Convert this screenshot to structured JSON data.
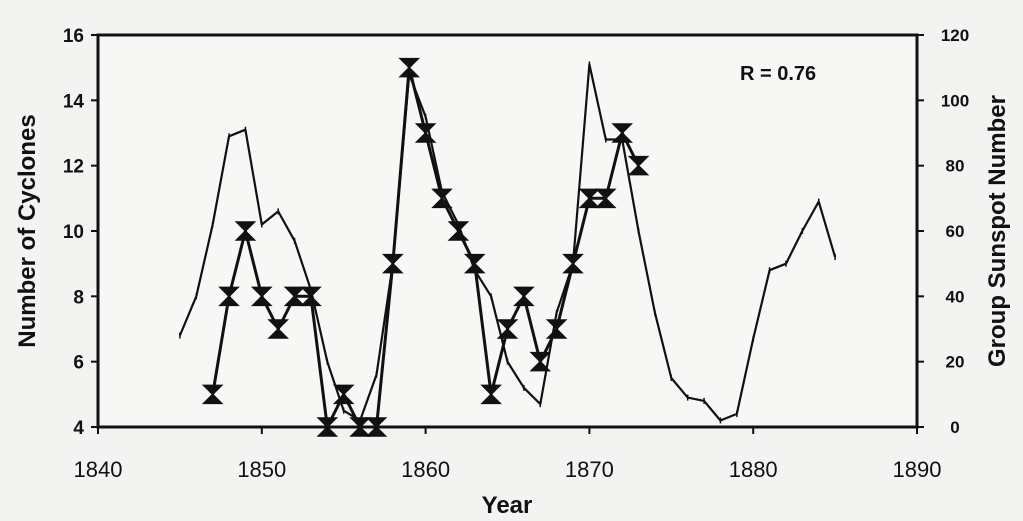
{
  "chart_data": {
    "type": "line",
    "title": "",
    "xlabel": "Year",
    "ylabel": "Number of Cyclones",
    "y2label": "Group Sunspot Number",
    "annotation": "R = 0.76",
    "xlim": [
      1840,
      1890
    ],
    "ylim": [
      4,
      16
    ],
    "y2lim": [
      0,
      120
    ],
    "xticks": [
      "1840",
      "1850",
      "1860",
      "1870",
      "1880",
      "1890"
    ],
    "yticks": [
      "4",
      "6",
      "8",
      "10",
      "12",
      "14",
      "16"
    ],
    "y2ticks": [
      "0",
      "20",
      "40",
      "60",
      "80",
      "100",
      "120"
    ],
    "grid": false,
    "series": [
      {
        "axis": "left",
        "marker": "hourglass",
        "x": [
          1847,
          1848,
          1849,
          1850,
          1851,
          1852,
          1853,
          1854,
          1855,
          1856,
          1857,
          1858,
          1859,
          1860,
          1861,
          1862,
          1863,
          1864,
          1865,
          1866,
          1867,
          1868,
          1869,
          1870,
          1871,
          1872,
          1873
        ],
        "y": [
          5,
          8,
          10,
          8,
          7,
          8,
          8,
          4,
          5,
          4,
          4,
          9,
          15,
          13,
          11,
          10,
          9,
          5,
          7,
          8,
          6,
          7,
          9,
          11,
          11,
          13,
          12
        ]
      },
      {
        "axis": "right",
        "marker": "tick",
        "x": [
          1845,
          1846,
          1847,
          1848,
          1849,
          1850,
          1851,
          1852,
          1853,
          1854,
          1855,
          1856,
          1857,
          1858,
          1859,
          1860,
          1861,
          1862,
          1863,
          1864,
          1865,
          1866,
          1867,
          1868,
          1869,
          1870,
          1871,
          1872,
          1873,
          1874,
          1875,
          1876,
          1877,
          1878,
          1879,
          1880,
          1881,
          1882,
          1883,
          1884,
          1885
        ],
        "y": [
          28,
          40,
          62,
          89,
          91,
          62,
          66,
          57,
          42,
          20,
          5,
          2,
          16,
          50,
          108,
          95,
          72,
          62,
          48,
          40,
          20,
          12,
          7,
          35,
          50,
          111,
          88,
          88,
          60,
          35,
          15,
          9,
          8,
          2,
          4,
          27,
          48,
          50,
          60,
          69,
          52
        ]
      }
    ]
  }
}
